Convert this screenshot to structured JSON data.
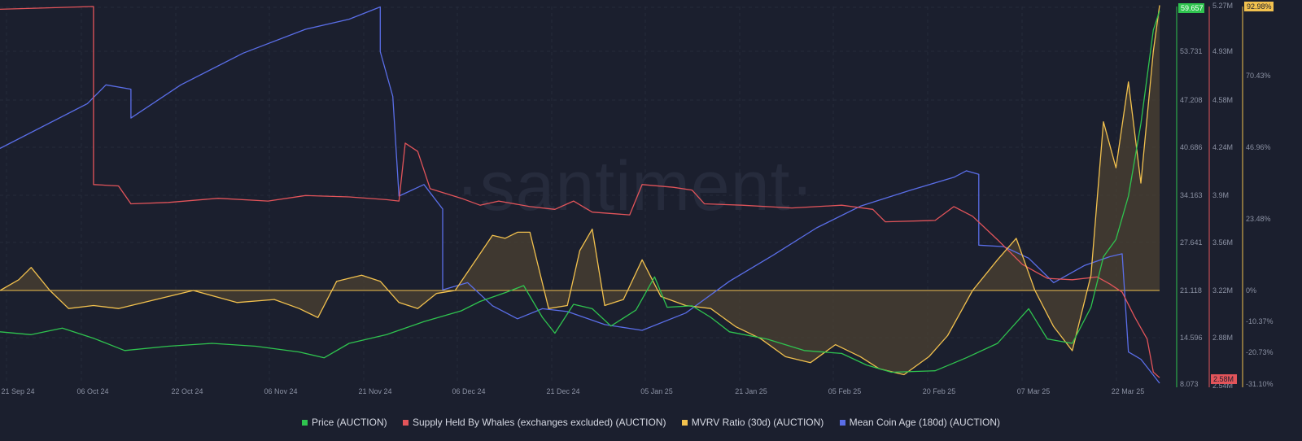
{
  "watermark": "·santiment·",
  "colors": {
    "price": "#2fc44f",
    "whales": "#e2545a",
    "mvrv": "#f2c14e",
    "coin_age": "#5a6ee8",
    "grid": "#262b3b",
    "background": "#1b1f2e"
  },
  "chart_data": {
    "type": "line",
    "x_axis": {
      "ticks": [
        "21 Sep 24",
        "06 Oct 24",
        "22 Oct 24",
        "06 Nov 24",
        "21 Nov 24",
        "06 Dec 24",
        "21 Dec 24",
        "05 Jan 25",
        "21 Jan 25",
        "05 Feb 25",
        "20 Feb 25",
        "07 Mar 25",
        "22 Mar 25"
      ],
      "range": [
        "2024-09-17",
        "2025-03-22"
      ]
    },
    "axes": {
      "price": {
        "ticks": [
          "53.731",
          "47.208",
          "40.686",
          "34.163",
          "27.641",
          "21.118",
          "14.596",
          "8.073"
        ],
        "badge": "59.657",
        "range": [
          8.073,
          60.254
        ]
      },
      "whales": {
        "ticks": [
          "5.27M",
          "4.93M",
          "4.58M",
          "4.24M",
          "3.9M",
          "3.56M",
          "3.22M",
          "2.88M",
          "2.54M"
        ],
        "badge": "2.58M",
        "range": [
          2.54,
          5.27
        ]
      },
      "mvrv": {
        "ticks": [
          "70.43%",
          "46.96%",
          "23.48%",
          "0%",
          "-10.37%",
          "-20.73%",
          "-31.10%"
        ],
        "badge": "92.98%"
      }
    },
    "series": [
      {
        "name": "Price (AUCTION)",
        "axis": "price",
        "points": [
          [
            "2024-09-17",
            15.2
          ],
          [
            "2024-09-22",
            14.8
          ],
          [
            "2024-09-27",
            15.7
          ],
          [
            "2024-10-02",
            14.3
          ],
          [
            "2024-10-07",
            12.6
          ],
          [
            "2024-10-14",
            13.2
          ],
          [
            "2024-10-21",
            13.6
          ],
          [
            "2024-10-28",
            13.2
          ],
          [
            "2024-11-04",
            12.4
          ],
          [
            "2024-11-08",
            11.6
          ],
          [
            "2024-11-12",
            13.6
          ],
          [
            "2024-11-18",
            14.8
          ],
          [
            "2024-11-24",
            16.6
          ],
          [
            "2024-11-30",
            18.1
          ],
          [
            "2024-12-03",
            19.4
          ],
          [
            "2024-12-07",
            20.6
          ],
          [
            "2024-12-10",
            21.6
          ],
          [
            "2024-12-13",
            17.2
          ],
          [
            "2024-12-15",
            15.0
          ],
          [
            "2024-12-18",
            19.0
          ],
          [
            "2024-12-21",
            18.4
          ],
          [
            "2024-12-24",
            16.0
          ],
          [
            "2024-12-28",
            18.2
          ],
          [
            "2024-12-31",
            22.8
          ],
          [
            "2025-01-02",
            18.6
          ],
          [
            "2025-01-06",
            18.8
          ],
          [
            "2025-01-09",
            17.2
          ],
          [
            "2025-01-12",
            15.2
          ],
          [
            "2025-01-18",
            14.2
          ],
          [
            "2025-01-24",
            12.6
          ],
          [
            "2025-01-30",
            12.2
          ],
          [
            "2025-02-03",
            10.6
          ],
          [
            "2025-02-07",
            9.6
          ],
          [
            "2025-02-14",
            9.8
          ],
          [
            "2025-02-19",
            11.6
          ],
          [
            "2025-02-24",
            13.6
          ],
          [
            "2025-03-01",
            18.4
          ],
          [
            "2025-03-04",
            14.2
          ],
          [
            "2025-03-08",
            13.6
          ],
          [
            "2025-03-11",
            18.6
          ],
          [
            "2025-03-13",
            25.6
          ],
          [
            "2025-03-15",
            28.0
          ],
          [
            "2025-03-17",
            34.0
          ],
          [
            "2025-03-19",
            44.0
          ],
          [
            "2025-03-21",
            57.0
          ],
          [
            "2025-03-22",
            59.657
          ]
        ]
      },
      {
        "name": "Supply Held By Whales (exchanges excluded) (AUCTION)",
        "axis": "whales",
        "points": [
          [
            "2024-09-17",
            5.25
          ],
          [
            "2024-10-02",
            5.27
          ],
          [
            "2024-10-02",
            3.98
          ],
          [
            "2024-10-06",
            3.97
          ],
          [
            "2024-10-08",
            3.84
          ],
          [
            "2024-10-14",
            3.85
          ],
          [
            "2024-10-22",
            3.88
          ],
          [
            "2024-10-30",
            3.86
          ],
          [
            "2024-11-05",
            3.9
          ],
          [
            "2024-11-12",
            3.89
          ],
          [
            "2024-11-18",
            3.87
          ],
          [
            "2024-11-20",
            3.86
          ],
          [
            "2024-11-21",
            4.28
          ],
          [
            "2024-11-23",
            4.22
          ],
          [
            "2024-11-25",
            3.95
          ],
          [
            "2024-11-30",
            3.88
          ],
          [
            "2024-12-03",
            3.83
          ],
          [
            "2024-12-06",
            3.86
          ],
          [
            "2024-12-11",
            3.82
          ],
          [
            "2024-12-15",
            3.8
          ],
          [
            "2024-12-18",
            3.86
          ],
          [
            "2024-12-21",
            3.78
          ],
          [
            "2024-12-27",
            3.76
          ],
          [
            "2024-12-29",
            3.98
          ],
          [
            "2025-01-03",
            3.96
          ],
          [
            "2025-01-06",
            3.94
          ],
          [
            "2025-01-08",
            3.84
          ],
          [
            "2025-01-14",
            3.83
          ],
          [
            "2025-01-22",
            3.81
          ],
          [
            "2025-01-30",
            3.83
          ],
          [
            "2025-02-04",
            3.8
          ],
          [
            "2025-02-06",
            3.71
          ],
          [
            "2025-02-14",
            3.72
          ],
          [
            "2025-02-17",
            3.82
          ],
          [
            "2025-02-20",
            3.75
          ],
          [
            "2025-02-24",
            3.58
          ],
          [
            "2025-02-28",
            3.4
          ],
          [
            "2025-03-04",
            3.3
          ],
          [
            "2025-03-08",
            3.29
          ],
          [
            "2025-03-12",
            3.31
          ],
          [
            "2025-03-14",
            3.26
          ],
          [
            "2025-03-16",
            3.2
          ],
          [
            "2025-03-18",
            3.02
          ],
          [
            "2025-03-20",
            2.86
          ],
          [
            "2025-03-21",
            2.62
          ],
          [
            "2025-03-22",
            2.58
          ]
        ]
      },
      {
        "name": "MVRV Ratio (30d) (AUCTION)",
        "axis": "mvrv",
        "points": [
          [
            "2024-09-17",
            0
          ],
          [
            "2024-09-20",
            3.5
          ],
          [
            "2024-09-22",
            7.5
          ],
          [
            "2024-09-25",
            0
          ],
          [
            "2024-09-28",
            -6
          ],
          [
            "2024-10-02",
            -5
          ],
          [
            "2024-10-06",
            -6
          ],
          [
            "2024-10-12",
            -3
          ],
          [
            "2024-10-18",
            0
          ],
          [
            "2024-10-25",
            -4
          ],
          [
            "2024-10-31",
            -3
          ],
          [
            "2024-11-04",
            -6
          ],
          [
            "2024-11-07",
            -9
          ],
          [
            "2024-11-10",
            3
          ],
          [
            "2024-11-14",
            5
          ],
          [
            "2024-11-17",
            3
          ],
          [
            "2024-11-20",
            -4
          ],
          [
            "2024-11-23",
            -6
          ],
          [
            "2024-11-26",
            -1
          ],
          [
            "2024-11-29",
            0
          ],
          [
            "2024-12-02",
            9
          ],
          [
            "2024-12-05",
            18
          ],
          [
            "2024-12-07",
            17
          ],
          [
            "2024-12-09",
            19
          ],
          [
            "2024-12-11",
            19
          ],
          [
            "2024-12-14",
            -6
          ],
          [
            "2024-12-17",
            -5
          ],
          [
            "2024-12-19",
            13
          ],
          [
            "2024-12-21",
            20
          ],
          [
            "2024-12-23",
            -5
          ],
          [
            "2024-12-26",
            -3
          ],
          [
            "2024-12-29",
            10
          ],
          [
            "2025-01-01",
            -2
          ],
          [
            "2025-01-05",
            -5
          ],
          [
            "2025-01-09",
            -6
          ],
          [
            "2025-01-13",
            -12
          ],
          [
            "2025-01-17",
            -16
          ],
          [
            "2025-01-21",
            -22
          ],
          [
            "2025-01-25",
            -24
          ],
          [
            "2025-01-29",
            -18
          ],
          [
            "2025-02-02",
            -22
          ],
          [
            "2025-02-05",
            -26
          ],
          [
            "2025-02-09",
            -28
          ],
          [
            "2025-02-13",
            -22
          ],
          [
            "2025-02-16",
            -15
          ],
          [
            "2025-02-20",
            0
          ],
          [
            "2025-02-24",
            10
          ],
          [
            "2025-02-27",
            17
          ],
          [
            "2025-03-02",
            0
          ],
          [
            "2025-03-05",
            -12
          ],
          [
            "2025-03-08",
            -20
          ],
          [
            "2025-03-11",
            5
          ],
          [
            "2025-03-13",
            55
          ],
          [
            "2025-03-15",
            40
          ],
          [
            "2025-03-17",
            68
          ],
          [
            "2025-03-19",
            35
          ],
          [
            "2025-03-21",
            78
          ],
          [
            "2025-03-22",
            92.98
          ]
        ]
      },
      {
        "name": "Mean Coin Age (180d) (AUCTION)",
        "axis": "price",
        "points": [
          [
            "2024-09-17",
            40.6
          ],
          [
            "2024-10-01",
            46.8
          ],
          [
            "2024-10-04",
            49.4
          ],
          [
            "2024-10-08",
            48.8
          ],
          [
            "2024-10-08",
            44.8
          ],
          [
            "2024-10-16",
            49.4
          ],
          [
            "2024-10-26",
            53.8
          ],
          [
            "2024-11-05",
            57.1
          ],
          [
            "2024-11-12",
            58.5
          ],
          [
            "2024-11-17",
            60.2
          ],
          [
            "2024-11-17",
            54.0
          ],
          [
            "2024-11-19",
            47.8
          ],
          [
            "2024-11-20",
            34.0
          ],
          [
            "2024-11-24",
            35.6
          ],
          [
            "2024-11-27",
            32.2
          ],
          [
            "2024-11-27",
            21.0
          ],
          [
            "2024-12-01",
            22.0
          ],
          [
            "2024-12-05",
            18.8
          ],
          [
            "2024-12-09",
            17.0
          ],
          [
            "2024-12-13",
            18.4
          ],
          [
            "2024-12-17",
            18.0
          ],
          [
            "2024-12-23",
            16.2
          ],
          [
            "2024-12-29",
            15.4
          ],
          [
            "2025-01-05",
            17.8
          ],
          [
            "2025-01-12",
            22.2
          ],
          [
            "2025-01-19",
            25.8
          ],
          [
            "2025-01-26",
            29.6
          ],
          [
            "2025-02-02",
            32.6
          ],
          [
            "2025-02-10",
            34.8
          ],
          [
            "2025-02-17",
            36.6
          ],
          [
            "2025-02-19",
            37.5
          ],
          [
            "2025-02-21",
            37.0
          ],
          [
            "2025-02-21",
            27.2
          ],
          [
            "2025-02-25",
            27.0
          ],
          [
            "2025-03-01",
            25.4
          ],
          [
            "2025-03-05",
            22.0
          ],
          [
            "2025-03-10",
            24.4
          ],
          [
            "2025-03-14",
            25.6
          ],
          [
            "2025-03-16",
            26.0
          ],
          [
            "2025-03-17",
            12.4
          ],
          [
            "2025-03-19",
            11.4
          ],
          [
            "2025-03-21",
            9.2
          ],
          [
            "2025-03-22",
            8.073
          ]
        ]
      }
    ],
    "legend_position": "bottom",
    "grid": true
  }
}
